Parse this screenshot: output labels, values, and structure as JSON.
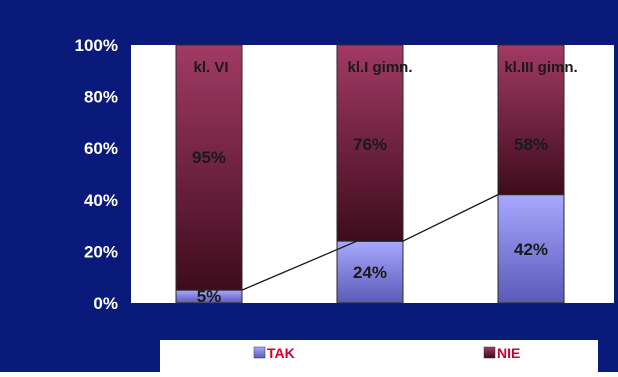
{
  "chart_data": {
    "type": "bar",
    "stacked": true,
    "percent_stacked": true,
    "categories": [
      "kl. VI",
      "kl.I gimn.",
      "kl.III gimn."
    ],
    "series": [
      {
        "name": "TAK",
        "values": [
          5,
          24,
          42
        ],
        "labels": [
          "5%",
          "24%",
          "42%"
        ],
        "color": "#8080ff"
      },
      {
        "name": "NIE",
        "values": [
          95,
          76,
          58
        ],
        "labels": [
          "95%",
          "76%",
          "58%"
        ],
        "color": "#8b2a4e"
      }
    ],
    "y_ticks": [
      "0%",
      "20%",
      "40%",
      "60%",
      "80%",
      "100%"
    ],
    "ylim": [
      0,
      100
    ],
    "trend_line": {
      "series": "TAK",
      "connects": "bar tops"
    },
    "legend": {
      "position": "bottom",
      "entries": [
        "TAK",
        "NIE"
      ]
    },
    "grid": false
  },
  "colors": {
    "frame_background": "#0a1a7a",
    "plot_background": "#ffffff",
    "axis_text": "#ffffff",
    "label_text": "#1a1a1a",
    "legend_text": "#cc0033",
    "tak_top": "#a8a8ff",
    "tak_bottom": "#5a5ab8",
    "nie_top": "#a23a64",
    "nie_bottom": "#3e0c1c"
  }
}
